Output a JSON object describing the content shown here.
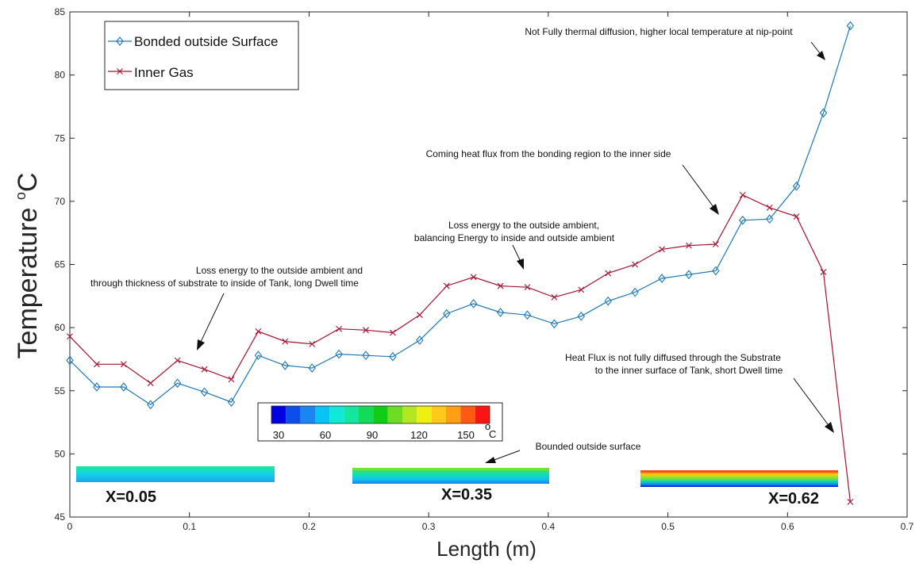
{
  "chart_data": {
    "type": "line",
    "title": "",
    "xlabel": "Length (m)",
    "ylabel": "Temperature ",
    "ylabel_unit": "C",
    "ylabel_degree": "o",
    "xlim": [
      0,
      0.7
    ],
    "ylim": [
      45,
      85
    ],
    "xticks": [
      0,
      0.1,
      0.2,
      0.3,
      0.4,
      0.5,
      0.6,
      0.7
    ],
    "xtick_labels": [
      "0",
      "0.1",
      "0.2",
      "0.3",
      "0.4",
      "0.5",
      "0.6",
      "0.7"
    ],
    "yticks": [
      45,
      50,
      55,
      60,
      65,
      70,
      75,
      80,
      85
    ],
    "ytick_labels": [
      "45",
      "50",
      "55",
      "60",
      "65",
      "70",
      "75",
      "80",
      "85"
    ],
    "grid": false,
    "legend_position": "top-left",
    "series": [
      {
        "name": "Bonded outside Surface",
        "marker": "diamond",
        "color": "#1f77b4",
        "x": [
          0,
          0.0225,
          0.045,
          0.0675,
          0.09,
          0.1125,
          0.135,
          0.1575,
          0.18,
          0.2025,
          0.225,
          0.2475,
          0.27,
          0.2925,
          0.315,
          0.3375,
          0.36,
          0.3825,
          0.405,
          0.4275,
          0.45,
          0.4725,
          0.495,
          0.5175,
          0.54,
          0.5625,
          0.585,
          0.6075,
          0.63,
          0.6525
        ],
        "values": [
          57.4,
          55.3,
          55.3,
          53.9,
          55.6,
          54.9,
          54.1,
          57.8,
          57.0,
          56.8,
          57.9,
          57.8,
          57.7,
          59.0,
          61.1,
          61.9,
          61.2,
          61.0,
          60.3,
          60.9,
          62.1,
          62.8,
          63.9,
          64.2,
          64.5,
          68.5,
          68.6,
          71.2,
          77.0,
          83.9
        ]
      },
      {
        "name": "Inner Gas",
        "marker": "x",
        "color": "#a2142f",
        "x": [
          0,
          0.0225,
          0.045,
          0.0675,
          0.09,
          0.1125,
          0.135,
          0.1575,
          0.18,
          0.2025,
          0.225,
          0.2475,
          0.27,
          0.2925,
          0.315,
          0.3375,
          0.36,
          0.3825,
          0.405,
          0.4275,
          0.45,
          0.4725,
          0.495,
          0.5175,
          0.54,
          0.5625,
          0.585,
          0.6075,
          0.63,
          0.6525
        ],
        "values": [
          59.3,
          57.1,
          57.1,
          55.6,
          57.4,
          56.7,
          55.9,
          59.7,
          58.9,
          58.7,
          59.9,
          59.8,
          59.6,
          61.0,
          63.3,
          64.0,
          63.3,
          63.2,
          62.4,
          63.0,
          64.3,
          65.0,
          66.2,
          66.5,
          66.6,
          70.5,
          69.5,
          68.8,
          64.4,
          46.2
        ]
      }
    ],
    "annotations": [
      {
        "lines": [
          "Not Fully thermal diffusion, higher local temperature at nip-point"
        ]
      },
      {
        "lines": [
          "Coming heat flux from the bonding region to the inner side"
        ]
      },
      {
        "lines": [
          "Loss energy to the outside ambient,",
          "balancing Energy to inside and outside ambient"
        ]
      },
      {
        "lines": [
          "Loss energy to the outside ambient and",
          "through thickness of substrate to inside of Tank, long Dwell time"
        ]
      },
      {
        "lines": [
          "Heat Flux is not fully diffused through the Substrate",
          "to the inner surface of Tank, short Dwell time"
        ]
      },
      {
        "lines": [
          "Bounded outside surface"
        ]
      }
    ],
    "colorbar": {
      "tick_labels": [
        "30",
        "60",
        "90",
        "120",
        "150"
      ],
      "unit": "C",
      "unit_degree": "o",
      "colors": [
        "#0000e0",
        "#0b4fe8",
        "#1a87f0",
        "#08c4f5",
        "#10e8d8",
        "#14e6a0",
        "#14da5a",
        "#10cc14",
        "#6edc22",
        "#b4e622",
        "#f0ef12",
        "#ffc81a",
        "#ffa014",
        "#ff5a14",
        "#ff1414"
      ]
    },
    "insets": [
      {
        "label": "X=0.05"
      },
      {
        "label": "X=0.35"
      },
      {
        "label": "X=0.62"
      }
    ]
  }
}
